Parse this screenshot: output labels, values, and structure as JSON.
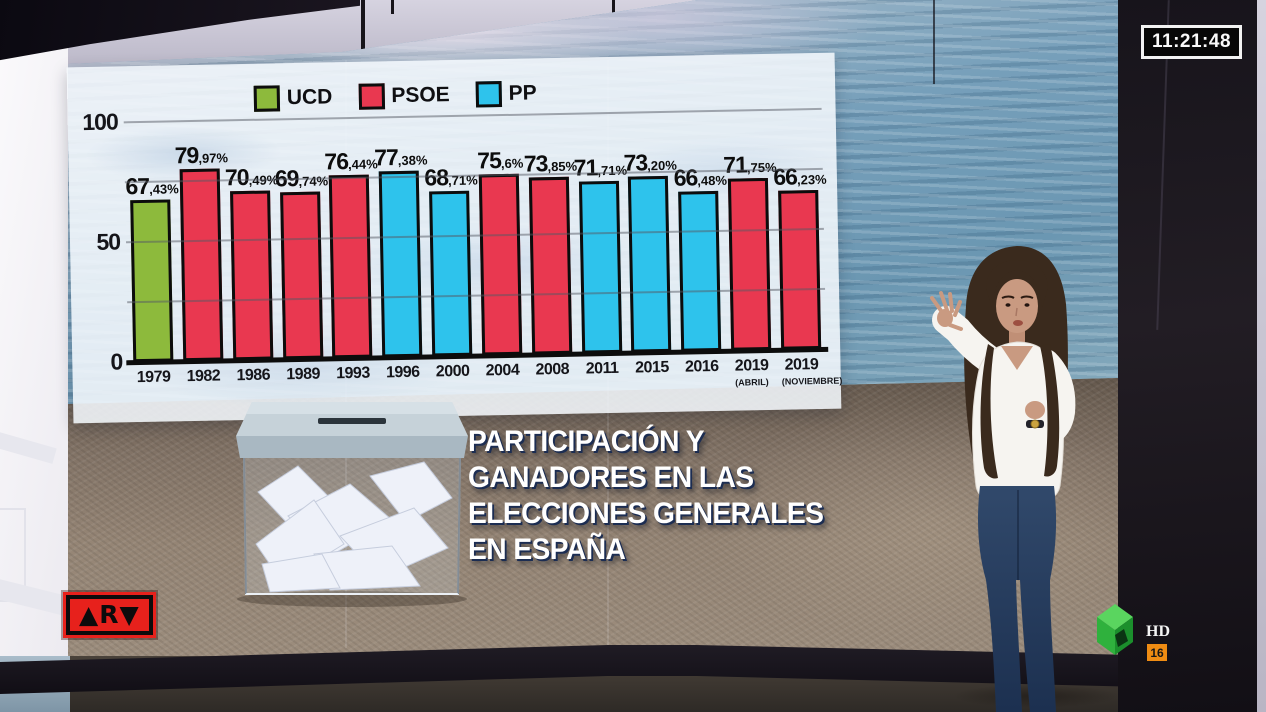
{
  "broadcast": {
    "clock_time": "11:21:48",
    "channel_bug": {
      "hd_label": "HD",
      "age_rating": "16",
      "logo_color": "#2fb13d"
    },
    "program_bug": {
      "text": "▲R▼",
      "bg_color": "#e7211c"
    }
  },
  "caption": {
    "lines": [
      "PARTICIPACIÓN Y",
      "GANADORES EN LAS",
      "ELECCIONES GENERALES",
      "EN ESPAÑA"
    ],
    "color": "#ffffff",
    "shadow_color": "#1c2d52"
  },
  "chart_data": {
    "type": "bar",
    "title": "Participación y ganadores en las elecciones generales en España",
    "xlabel": "",
    "ylabel": "",
    "unit": "%",
    "ylim": [
      0,
      100
    ],
    "yticks": [
      100,
      50,
      0
    ],
    "ytick_labels": [
      "100",
      "50",
      "0"
    ],
    "gridlines": [
      25,
      50,
      75,
      100
    ],
    "grid": true,
    "legend_position": "top",
    "legend": [
      "UCD",
      "PSOE",
      "PP"
    ],
    "series_colors": {
      "UCD": "#8dba3c",
      "PSOE": "#e93850",
      "PP": "#2ec3ec"
    },
    "categories": [
      "1979",
      "1982",
      "1986",
      "1989",
      "1993",
      "1996",
      "2000",
      "2004",
      "2008",
      "2011",
      "2015",
      "2016",
      "2019",
      "2019"
    ],
    "bars": [
      {
        "year": "1979",
        "note": "",
        "party": "UCD",
        "value": 67.43,
        "label_int": "67",
        "label_dec": ",43%"
      },
      {
        "year": "1982",
        "note": "",
        "party": "PSOE",
        "value": 79.97,
        "label_int": "79",
        "label_dec": ",97%"
      },
      {
        "year": "1986",
        "note": "",
        "party": "PSOE",
        "value": 70.49,
        "label_int": "70",
        "label_dec": ",49%"
      },
      {
        "year": "1989",
        "note": "",
        "party": "PSOE",
        "value": 69.74,
        "label_int": "69",
        "label_dec": ",74%"
      },
      {
        "year": "1993",
        "note": "",
        "party": "PSOE",
        "value": 76.44,
        "label_int": "76",
        "label_dec": ",44%"
      },
      {
        "year": "1996",
        "note": "",
        "party": "PP",
        "value": 77.38,
        "label_int": "77",
        "label_dec": ",38%"
      },
      {
        "year": "2000",
        "note": "",
        "party": "PP",
        "value": 68.71,
        "label_int": "68",
        "label_dec": ",71%"
      },
      {
        "year": "2004",
        "note": "",
        "party": "PSOE",
        "value": 75.6,
        "label_int": "75",
        "label_dec": ",6%"
      },
      {
        "year": "2008",
        "note": "",
        "party": "PSOE",
        "value": 73.85,
        "label_int": "73",
        "label_dec": ",85%"
      },
      {
        "year": "2011",
        "note": "",
        "party": "PP",
        "value": 71.71,
        "label_int": "71",
        "label_dec": ",71%"
      },
      {
        "year": "2015",
        "note": "",
        "party": "PP",
        "value": 73.2,
        "label_int": "73",
        "label_dec": ",20%"
      },
      {
        "year": "2016",
        "note": "",
        "party": "PP",
        "value": 66.48,
        "label_int": "66",
        "label_dec": ",48%"
      },
      {
        "year": "2019",
        "note": "(ABRIL)",
        "party": "PSOE",
        "value": 71.75,
        "label_int": "71",
        "label_dec": ",75%"
      },
      {
        "year": "2019",
        "note": "(NOVIEMBRE)",
        "party": "PSOE",
        "value": 66.23,
        "label_int": "66",
        "label_dec": ",23%"
      }
    ]
  }
}
